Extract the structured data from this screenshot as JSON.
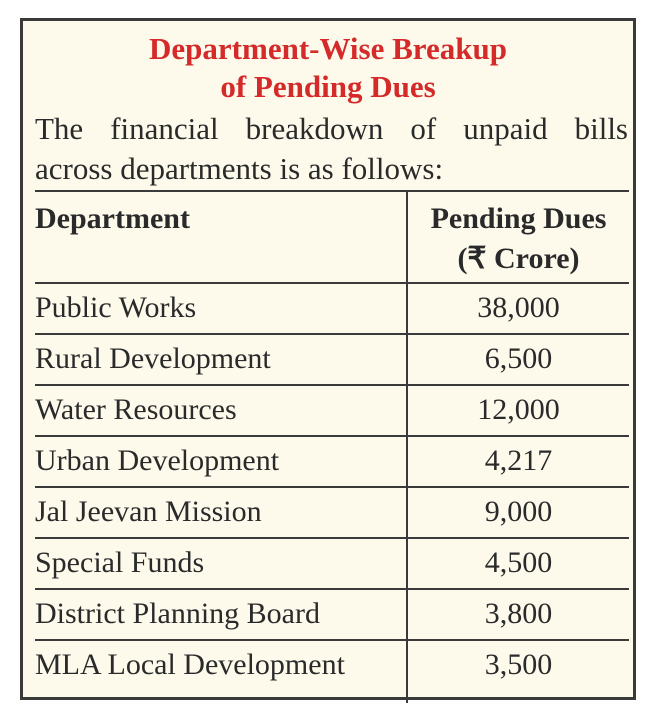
{
  "title": {
    "line1": "Department-Wise Breakup",
    "line2": "of Pending Dues",
    "color": "#d42a2a"
  },
  "intro": {
    "line1": "The financial breakdown of unpaid bills",
    "line2": "across departments is as follows:"
  },
  "table": {
    "headers": {
      "department": "Department",
      "dues_line1": "Pending Dues",
      "dues_line2": "(₹ Crore)"
    },
    "rows": [
      {
        "department": "Public Works",
        "dues": "38,000"
      },
      {
        "department": "Rural Development",
        "dues": "6,500"
      },
      {
        "department": "Water Resources",
        "dues": "12,000"
      },
      {
        "department": "Urban Development",
        "dues": "4,217"
      },
      {
        "department": "Jal Jeevan Mission",
        "dues": "9,000"
      },
      {
        "department": "Special Funds",
        "dues": "4,500"
      },
      {
        "department": "District Planning Board",
        "dues": "3,800"
      },
      {
        "department": "MLA Local Development",
        "dues": "3,500"
      }
    ]
  }
}
